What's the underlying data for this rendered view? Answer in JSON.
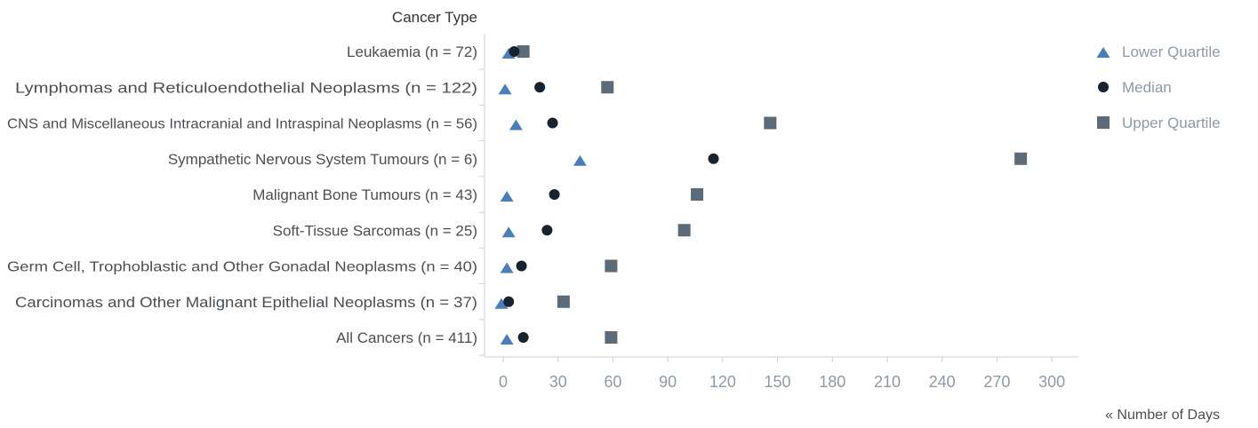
{
  "chart_data": {
    "type": "scatter",
    "ylabel": "Cancer Type",
    "xlabel": "« Number of Days",
    "xlim": [
      0,
      325
    ],
    "xticks": [
      0,
      30,
      60,
      90,
      120,
      150,
      180,
      210,
      240,
      270,
      300
    ],
    "categories": [
      "Leukaemia (n =  72)",
      "Lymphomas and Reticuloendothelial Neoplasms  (n =  122)",
      "CNS and Miscellaneous Intracranial and Intraspinal Neoplasms  (n = 56)",
      "Sympathetic Nervous System Tumours (n =  6)",
      "Malignant Bone Tumours (n = 43)",
      "Soft-Tissue Sarcomas (n = 25)",
      "Germ Cell, Trophoblastic and Other Gonadal Neoplasms (n = 40)",
      "Carcinomas and Other Malignant Epithelial Neoplasms (n = 37)",
      "All Cancers (n = 411)"
    ],
    "series": [
      {
        "name": "Lower Quartile",
        "marker": "triangle",
        "color": "#4a7ebb",
        "values": [
          3,
          1,
          7,
          42,
          2,
          3,
          2,
          -1,
          2
        ]
      },
      {
        "name": "Median",
        "marker": "circle",
        "color": "#17232e",
        "values": [
          6,
          20,
          27,
          115,
          28,
          24,
          10,
          3,
          11
        ]
      },
      {
        "name": "Upper Quartile",
        "marker": "square",
        "color": "#5b6b78",
        "values": [
          11,
          57,
          146,
          283,
          106,
          99,
          59,
          33,
          59
        ]
      }
    ],
    "legend_position": "right",
    "grid": false
  }
}
